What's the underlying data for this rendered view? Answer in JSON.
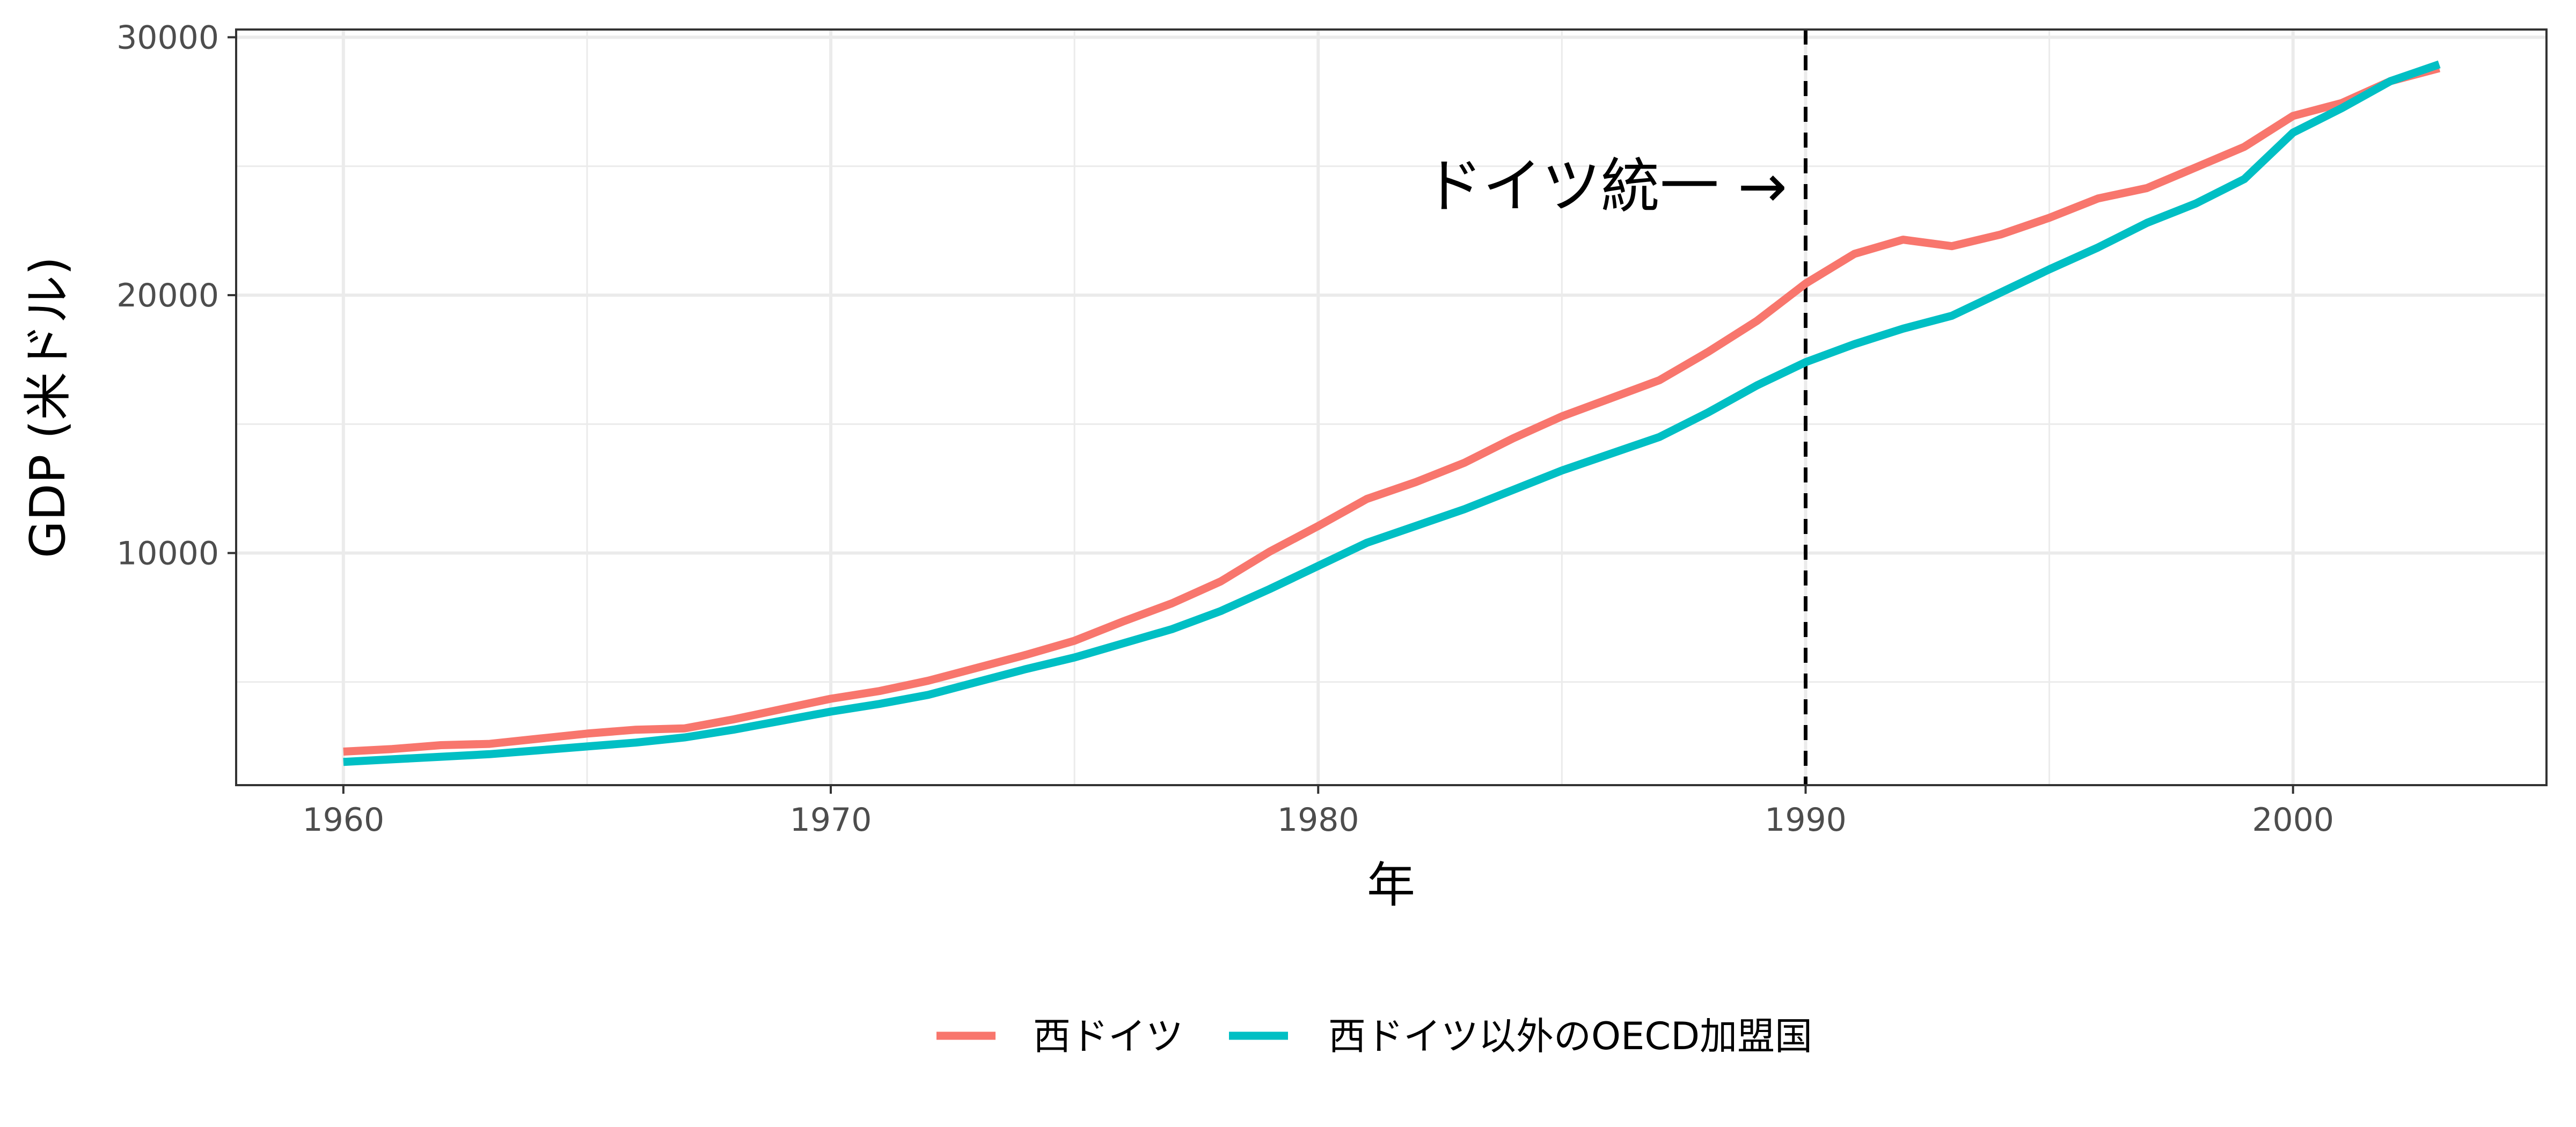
{
  "chart_data": {
    "type": "line",
    "title": "",
    "xlabel": "年",
    "ylabel": "GDP (米ドル)",
    "xlim": [
      1957.8,
      2005.2
    ],
    "ylim": [
      1000,
      30300
    ],
    "x_ticks": [
      1960,
      1970,
      1980,
      1990,
      2000
    ],
    "x_tick_labels": [
      "1960",
      "1970",
      "1980",
      "1990",
      "2000"
    ],
    "y_ticks": [
      10000,
      20000,
      30000
    ],
    "y_tick_labels": [
      "10000",
      "20000",
      "30000"
    ],
    "x_minor_ticks": [
      1965,
      1975,
      1985,
      1995
    ],
    "y_minor_ticks": [
      5000,
      15000,
      25000
    ],
    "grid": true,
    "legend_position": "bottom",
    "x": [
      1960,
      1961,
      1962,
      1963,
      1964,
      1965,
      1966,
      1967,
      1968,
      1969,
      1970,
      1971,
      1972,
      1973,
      1974,
      1975,
      1976,
      1977,
      1978,
      1979,
      1980,
      1981,
      1982,
      1983,
      1984,
      1985,
      1986,
      1987,
      1988,
      1989,
      1990,
      1991,
      1992,
      1993,
      1994,
      1995,
      1996,
      1997,
      1998,
      1999,
      2000,
      2001,
      2002,
      2003
    ],
    "series": [
      {
        "name": "西ドイツ",
        "color": "#F8766D",
        "values": [
          2300,
          2400,
          2550,
          2600,
          2800,
          3000,
          3150,
          3200,
          3550,
          3950,
          4350,
          4650,
          5050,
          5550,
          6050,
          6600,
          7350,
          8050,
          8900,
          10050,
          11050,
          12100,
          12750,
          13500,
          14450,
          15300,
          16000,
          16700,
          17800,
          19000,
          20450,
          21600,
          22150,
          21900,
          22350,
          23000,
          23750,
          24150,
          24950,
          25750,
          26950,
          27450,
          28300,
          28800
        ]
      },
      {
        "name": "西ドイツ以外のOECD加盟国",
        "color": "#00BFC4",
        "values": [
          1900,
          2000,
          2100,
          2200,
          2350,
          2500,
          2650,
          2850,
          3150,
          3500,
          3850,
          4150,
          4500,
          5000,
          5500,
          5950,
          6500,
          7050,
          7750,
          8600,
          9500,
          10400,
          11050,
          11700,
          12450,
          13200,
          13850,
          14500,
          15450,
          16500,
          17400,
          18100,
          18700,
          19200,
          20100,
          21000,
          21850,
          22800,
          23550,
          24500,
          26300,
          27250,
          28300,
          28950
        ]
      }
    ],
    "vline": {
      "x": 1990,
      "style": "dashed",
      "color": "#000000"
    },
    "annotation": {
      "text": "ドイツ統一 →",
      "x": 1989.5,
      "y": 23500
    }
  }
}
